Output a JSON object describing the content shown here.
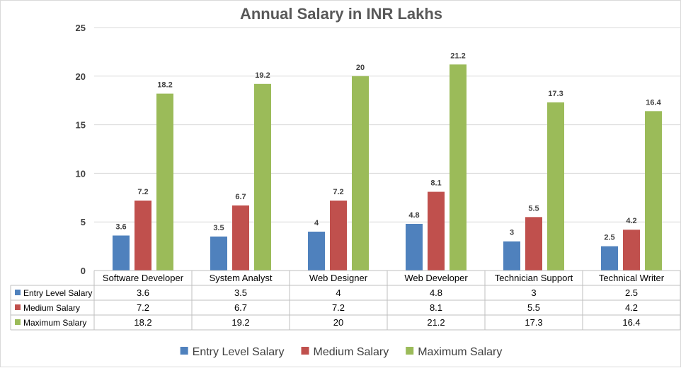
{
  "chart_data": {
    "type": "bar",
    "title": "Annual Salary in INR Lakhs",
    "categories": [
      "Software Developer",
      "System Analyst",
      "Web Designer",
      "Web Developer",
      "Technician Support",
      "Technical Writer"
    ],
    "series": [
      {
        "name": "Entry Level Salary",
        "color": "#4f81bd",
        "values": [
          3.6,
          3.5,
          4,
          4.8,
          3,
          2.5
        ]
      },
      {
        "name": "Medium Salary",
        "color": "#c0504d",
        "values": [
          7.2,
          6.7,
          7.2,
          8.1,
          5.5,
          4.2
        ]
      },
      {
        "name": "Maximum Salary",
        "color": "#9bbb59",
        "values": [
          18.2,
          19.2,
          20,
          21.2,
          17.3,
          16.4
        ]
      }
    ],
    "ylim": [
      0,
      25
    ],
    "yticks": [
      0,
      5,
      10,
      15,
      20,
      25
    ],
    "grid": true,
    "data_table": true,
    "legend": "bottom"
  }
}
